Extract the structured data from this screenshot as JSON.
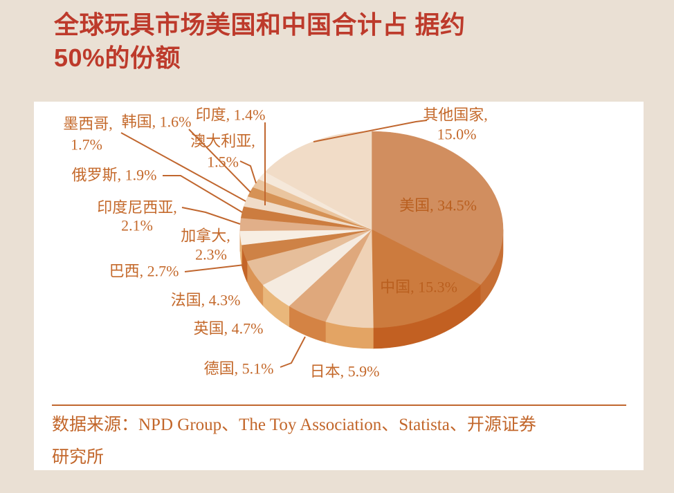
{
  "page": {
    "background_color": "#EAE0D4",
    "card_background": "#FFFFFF"
  },
  "header": {
    "title_lines": [
      "全球玩具市场美国和中国合计占 据约",
      "50%的份额"
    ],
    "title_color": "#BD3A2B"
  },
  "chart_data": {
    "type": "pie",
    "style": "3d",
    "direction": "clockwise",
    "start_angle": "12-oclock",
    "unit": "%",
    "label_color": "#C4692B",
    "inside_label_color": "#B95F1F",
    "leader_color": "#C0662E",
    "slices": [
      {
        "label": "美国",
        "value": 34.5,
        "color": "#D18E5F"
      },
      {
        "label": "中国",
        "value": 15.3,
        "color": "#CC7B3E"
      },
      {
        "label": "日本",
        "value": 5.9,
        "color": "#EFD2B6"
      },
      {
        "label": "德国",
        "value": 5.1,
        "color": "#DFA87C"
      },
      {
        "label": "英国",
        "value": 4.7,
        "color": "#F5EBE0"
      },
      {
        "label": "法国",
        "value": 4.3,
        "color": "#E6BE9A"
      },
      {
        "label": "巴西",
        "value": 2.7,
        "color": "#CE8246"
      },
      {
        "label": "加拿大",
        "value": 2.3,
        "color": "#F7EEE3"
      },
      {
        "label": "印度尼西亚",
        "value": 2.1,
        "color": "#E1AF89"
      },
      {
        "label": "俄罗斯",
        "value": 1.9,
        "color": "#CC7C3F"
      },
      {
        "label": "墨西哥",
        "value": 1.7,
        "color": "#F0DCC8"
      },
      {
        "label": "韩国",
        "value": 1.6,
        "color": "#D69255"
      },
      {
        "label": "澳大利亚",
        "value": 1.5,
        "color": "#EAC59F"
      },
      {
        "label": "印度",
        "value": 1.4,
        "color": "#F5E8DA"
      },
      {
        "label": "其他国家",
        "value": 15.0,
        "color": "#F1DCC7"
      }
    ]
  },
  "source": {
    "lines": [
      "数据来源：NPD Group、The Toy Association、Statista、开源证券",
      "研究所"
    ],
    "color": "#C2662A",
    "rule_color": "#C0662E"
  }
}
